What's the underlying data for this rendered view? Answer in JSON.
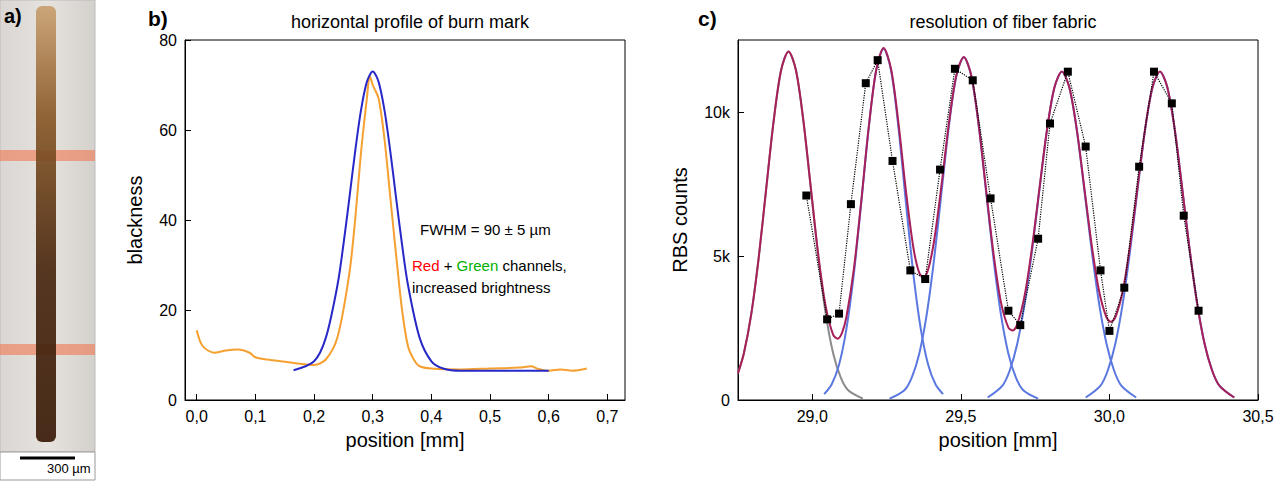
{
  "photo": {
    "letter": "a)",
    "scale_bar": "300 µm"
  },
  "chart_data": [
    {
      "type": "line",
      "letter": "b)",
      "title": "horizontal profile of burn mark",
      "xlabel": "position [mm]",
      "ylabel": "blackness",
      "xlim": [
        -0.02,
        0.73
      ],
      "xticks": [
        {
          "value": 0,
          "label": "0,0"
        },
        {
          "value": 0.1,
          "label": "0,1"
        },
        {
          "value": 0.2,
          "label": "0,2"
        },
        {
          "value": 0.3,
          "label": "0,3"
        },
        {
          "value": 0.4,
          "label": "0,4"
        },
        {
          "value": 0.5,
          "label": "0,5"
        },
        {
          "value": 0.6,
          "label": "0,6"
        },
        {
          "value": 0.7,
          "label": "0,7"
        }
      ],
      "ylim": [
        0,
        80
      ],
      "yticks": [
        0,
        20,
        40,
        60,
        80
      ],
      "grid": false,
      "annotations": [
        [
          {
            "text": "FWHM = 90 ± 5 µm"
          }
        ],
        [
          {
            "text": "Red",
            "color": "#ff0000"
          },
          {
            "text": " + "
          },
          {
            "text": "Green",
            "color": "#00b000"
          },
          {
            "text": " channels,"
          }
        ],
        [
          {
            "text": "increased brightness"
          }
        ]
      ],
      "series": [
        {
          "color": "#f5a030",
          "marker": "none",
          "line_style": "solid",
          "x": [
            0,
            0.01,
            0.03,
            0.05,
            0.07,
            0.09,
            0.1,
            0.12,
            0.15,
            0.18,
            0.2,
            0.22,
            0.24,
            0.26,
            0.27,
            0.28,
            0.29,
            0.295,
            0.3,
            0.31,
            0.32,
            0.33,
            0.34,
            0.35,
            0.36,
            0.37,
            0.38,
            0.4,
            0.45,
            0.5,
            0.55,
            0.57,
            0.58,
            0.6,
            0.62,
            0.64,
            0.665
          ],
          "values": [
            15.5,
            12,
            10.5,
            11,
            11.2,
            10.5,
            9.5,
            9,
            8.5,
            8,
            7.8,
            9,
            14,
            28,
            40,
            55,
            67,
            72,
            70,
            67,
            58,
            45,
            32,
            20,
            12,
            9,
            7.5,
            7,
            6.8,
            7,
            7.2,
            7.5,
            7,
            6.5,
            6.8,
            6.5,
            7
          ]
        },
        {
          "color": "#2828c8",
          "marker": "none",
          "line_style": "solid",
          "x": [
            0.165,
            0.2,
            0.22,
            0.24,
            0.25,
            0.26,
            0.27,
            0.28,
            0.29,
            0.3,
            0.31,
            0.32,
            0.33,
            0.34,
            0.35,
            0.36,
            0.38,
            0.4,
            0.42,
            0.45,
            0.5,
            0.6
          ],
          "values": [
            6.6,
            8.6,
            13.8,
            25.6,
            34.5,
            44.7,
            55.2,
            64.4,
            70.7,
            73,
            70.7,
            64.4,
            55.2,
            44.7,
            34.5,
            25.6,
            13.8,
            8.6,
            7.0,
            6.5,
            6.5,
            6.5
          ]
        }
      ]
    },
    {
      "type": "line",
      "letter": "c)",
      "title": "resolution of fiber fabric",
      "xlabel": "position [mm]",
      "ylabel": "RBS counts",
      "xlim": [
        28.75,
        30.5
      ],
      "xticks": [
        {
          "value": 29,
          "label": "29,0"
        },
        {
          "value": 29.5,
          "label": "29,5"
        },
        {
          "value": 30,
          "label": "30,0"
        },
        {
          "value": 30.5,
          "label": "30,5"
        }
      ],
      "ylim": [
        0,
        12500
      ],
      "yticks": [
        0,
        {
          "value": 5000,
          "label": "5k"
        },
        {
          "value": 10000,
          "label": "10k"
        }
      ],
      "grid": false,
      "series": [
        {
          "color": "#8c8c8c",
          "marker": "none",
          "line_style": "solid",
          "x": [
            28.75,
            28.77,
            28.795,
            28.82,
            28.845,
            28.87,
            28.895,
            28.92,
            28.945,
            28.97,
            28.995,
            29.02,
            29.045,
            29.07,
            29.095,
            29.12,
            29.17
          ],
          "values": [
            927,
            1630,
            3010,
            4970,
            7350,
            9690,
            11450,
            12100,
            11450,
            9690,
            7350,
            4970,
            3010,
            1630,
            800,
            345,
            47
          ]
        },
        {
          "color": "#5a78e0",
          "marker": "none",
          "line_style": "solid",
          "x": [
            29.04,
            29.065,
            29.09,
            29.115,
            29.14,
            29.165,
            29.19,
            29.215,
            29.24,
            29.265,
            29.29,
            29.315,
            29.34,
            29.365,
            29.39,
            29.415,
            29.44
          ],
          "values": [
            206,
            537,
            1220,
            2477,
            4392,
            6869,
            9455,
            11444,
            12200,
            11444,
            9455,
            6869,
            4392,
            2477,
            1220,
            537,
            206
          ]
        },
        {
          "color": "#5a78e0",
          "marker": "none",
          "line_style": "solid",
          "x": [
            29.26,
            29.31,
            29.335,
            29.36,
            29.385,
            29.41,
            29.435,
            29.46,
            29.485,
            29.51,
            29.535,
            29.56,
            29.585,
            29.61,
            29.635,
            29.66,
            29.685,
            29.71,
            29.76
          ],
          "values": [
            46,
            339,
            785,
            1607,
            2963,
            4891,
            7223,
            9532,
            11257,
            11900,
            11257,
            9532,
            7223,
            4891,
            2963,
            1607,
            785,
            339,
            46
          ]
        },
        {
          "color": "#5a78e0",
          "marker": "none",
          "line_style": "solid",
          "x": [
            29.59,
            29.64,
            29.665,
            29.69,
            29.715,
            29.74,
            29.765,
            29.79,
            29.815,
            29.84,
            29.865,
            29.89,
            29.915,
            29.94,
            29.965,
            29.99,
            30.015,
            30.04,
            30.09
          ],
          "values": [
            86,
            500,
            1042,
            1961,
            3363,
            5221,
            7342,
            9382,
            10853,
            11400,
            10853,
            9382,
            7342,
            5221,
            3363,
            1961,
            1042,
            500,
            86
          ]
        },
        {
          "color": "#5a78e0",
          "marker": "none",
          "line_style": "solid",
          "x": [
            29.92,
            29.97,
            29.995,
            30.02,
            30.045,
            30.07,
            30.095,
            30.12,
            30.145,
            30.17,
            30.195,
            30.22,
            30.245,
            30.27,
            30.295,
            30.32,
            30.345,
            30.37,
            30.42
          ],
          "values": [
            86,
            500,
            1042,
            1961,
            3363,
            5221,
            7342,
            9382,
            10853,
            11400,
            10853,
            9382,
            7342,
            5221,
            3363,
            1961,
            1042,
            500,
            86
          ]
        },
        {
          "color": "#a8205a",
          "marker": "none",
          "line_style": "solid",
          "x": [
            28.75,
            28.77,
            28.795,
            28.82,
            28.845,
            28.87,
            28.895,
            28.92,
            28.945,
            28.97,
            28.995,
            29.02,
            29.045,
            29.07,
            29.085,
            29.1,
            29.115,
            29.14,
            29.165,
            29.19,
            29.215,
            29.24,
            29.265,
            29.29,
            29.315,
            29.34,
            29.36,
            29.375,
            29.39,
            29.41,
            29.435,
            29.46,
            29.485,
            29.51,
            29.535,
            29.56,
            29.585,
            29.61,
            29.635,
            29.66,
            29.675,
            29.69,
            29.715,
            29.74,
            29.765,
            29.79,
            29.815,
            29.84,
            29.865,
            29.89,
            29.915,
            29.94,
            29.965,
            29.99,
            30.005,
            30.02,
            30.045,
            30.07,
            30.095,
            30.12,
            30.145,
            30.17,
            30.195,
            30.22,
            30.245,
            30.27,
            30.295,
            30.32,
            30.345,
            30.37,
            30.42
          ],
          "values": [
            927,
            1630,
            3010,
            4970,
            7350,
            9690,
            11450,
            12100,
            11450,
            9700,
            7380,
            5060,
            3260,
            2270,
            2128,
            2330,
            2890,
            4556,
            6927,
            9473,
            11450,
            12218,
            11501,
            9616,
            7274,
            5304,
            4413,
            4256,
            4528,
            5530,
            7475,
            9619,
            11284,
            11909,
            11265,
            9557,
            7294,
            5074,
            3391,
            2514,
            2416,
            2629,
            3646,
            5329,
            7388,
            9393,
            10856,
            11402,
            10861,
            9407,
            7413,
            5404,
            3791,
            2868,
            2716,
            2868,
            3791,
            5404,
            7413,
            9407,
            10861,
            11402,
            10853,
            9382,
            7342,
            5221,
            3363,
            1961,
            1042,
            500,
            86
          ]
        },
        {
          "color": "#000000",
          "marker": "square",
          "line_style": "dotted",
          "x": [
            28.98,
            29.05,
            29.09,
            29.13,
            29.18,
            29.22,
            29.27,
            29.33,
            29.38,
            29.43,
            29.48,
            29.54,
            29.6,
            29.66,
            29.7,
            29.76,
            29.8,
            29.86,
            29.92,
            29.97,
            30.0,
            30.05,
            30.1,
            30.15,
            30.21,
            30.25,
            30.3
          ],
          "values": [
            7100,
            2800,
            3000,
            6800,
            11000,
            11800,
            8300,
            4500,
            4200,
            8000,
            11500,
            11100,
            7000,
            3100,
            2600,
            5600,
            9600,
            11400,
            8800,
            4500,
            2400,
            3900,
            8100,
            11400,
            10300,
            6400,
            3100
          ]
        }
      ]
    }
  ]
}
